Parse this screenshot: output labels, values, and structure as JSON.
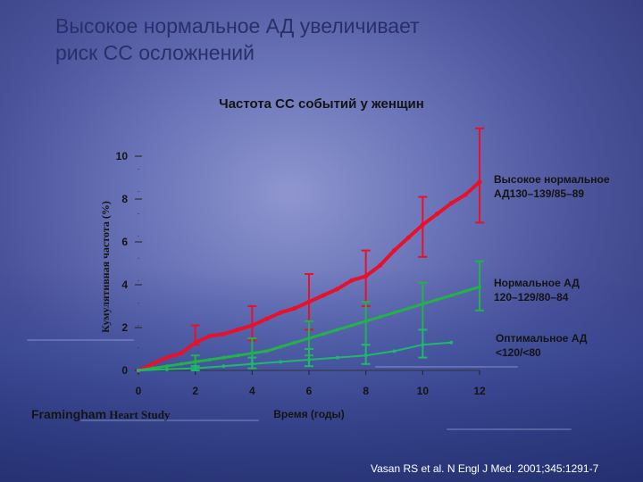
{
  "slide": {
    "title_line1": "Высокое нормальное АД увеличивает",
    "title_line2": "риск СС осложнений",
    "study_part1": "Framingham",
    "study_part2": " Heart Study",
    "citation": "Vasan RS et al. N Engl J Med. 2001;345:1291-7"
  },
  "colors": {
    "high_normal": "#e8102a",
    "normal": "#22b24a",
    "optimal": "#1fb86b"
  },
  "chart_data": {
    "type": "line",
    "title": "Частота СС событий у женщин",
    "xlabel": "Время (годы)",
    "ylabel": "Кумулятивная частота (%)",
    "xlim": [
      0,
      12
    ],
    "ylim": [
      0,
      10
    ],
    "xticks": [
      0,
      2,
      4,
      6,
      8,
      10,
      12
    ],
    "yticks": [
      0,
      2,
      4,
      6,
      8,
      10
    ],
    "series": [
      {
        "name": "Высокое нормальное АД130–139/85–89",
        "name_line1": "Высокое нормальное",
        "name_line2": "АД130–139/85–89",
        "points": [
          [
            0,
            0
          ],
          [
            0.5,
            0.3
          ],
          [
            1,
            0.6
          ],
          [
            1.5,
            0.8
          ],
          [
            2,
            1.3
          ],
          [
            2.5,
            1.6
          ],
          [
            3,
            1.7
          ],
          [
            3.5,
            1.9
          ],
          [
            4,
            2.1
          ],
          [
            4.5,
            2.4
          ],
          [
            5,
            2.7
          ],
          [
            5.5,
            2.9
          ],
          [
            6,
            3.2
          ],
          [
            6.5,
            3.5
          ],
          [
            7,
            3.8
          ],
          [
            7.5,
            4.2
          ],
          [
            8,
            4.4
          ],
          [
            8.5,
            4.9
          ],
          [
            9,
            5.6
          ],
          [
            9.5,
            6.2
          ],
          [
            10,
            6.8
          ],
          [
            10.5,
            7.3
          ],
          [
            11,
            7.8
          ],
          [
            11.5,
            8.2
          ],
          [
            12,
            8.8
          ]
        ],
        "error_bars": [
          [
            2,
            1.2,
            2.1
          ],
          [
            4,
            1.4,
            3.0
          ],
          [
            6,
            1.9,
            4.5
          ],
          [
            8,
            3.0,
            5.6
          ],
          [
            10,
            5.3,
            8.1
          ],
          [
            12,
            6.9,
            11.3
          ]
        ]
      },
      {
        "name": "Нормальное АД 120–129/80–84",
        "name_line1": "Нормальное АД",
        "name_line2": "120–129/80–84",
        "points": [
          [
            0,
            0
          ],
          [
            0.5,
            0.1
          ],
          [
            1,
            0.2
          ],
          [
            1.5,
            0.3
          ],
          [
            2,
            0.4
          ],
          [
            2.5,
            0.5
          ],
          [
            3,
            0.6
          ],
          [
            3.5,
            0.7
          ],
          [
            4,
            0.8
          ],
          [
            4.5,
            0.9
          ],
          [
            5,
            1.1
          ],
          [
            5.5,
            1.3
          ],
          [
            6,
            1.5
          ],
          [
            6.5,
            1.7
          ],
          [
            7,
            1.9
          ],
          [
            7.5,
            2.1
          ],
          [
            8,
            2.3
          ],
          [
            8.5,
            2.5
          ],
          [
            9,
            2.7
          ],
          [
            9.5,
            2.9
          ],
          [
            10,
            3.1
          ],
          [
            10.5,
            3.3
          ],
          [
            11,
            3.5
          ],
          [
            11.5,
            3.7
          ],
          [
            12,
            3.9
          ]
        ],
        "error_bars": [
          [
            2,
            0.1,
            0.7
          ],
          [
            4,
            0.3,
            1.5
          ],
          [
            6,
            0.7,
            2.3
          ],
          [
            8,
            1.2,
            3.2
          ],
          [
            10,
            1.9,
            4.1
          ],
          [
            12,
            2.8,
            5.1
          ]
        ]
      },
      {
        "name": "Оптимальное АД <120/<80",
        "name_line1": "Оптимальное АД",
        "name_line2": "<120/<80",
        "points": [
          [
            0,
            0
          ],
          [
            1,
            0.05
          ],
          [
            2,
            0.1
          ],
          [
            3,
            0.2
          ],
          [
            4,
            0.3
          ],
          [
            5,
            0.4
          ],
          [
            6,
            0.5
          ],
          [
            7,
            0.6
          ],
          [
            8,
            0.7
          ],
          [
            9,
            0.9
          ],
          [
            10,
            1.2
          ],
          [
            11,
            1.3
          ]
        ],
        "error_bars": [
          [
            2,
            0.0,
            0.2
          ],
          [
            4,
            0.1,
            0.6
          ],
          [
            6,
            0.2,
            1.0
          ],
          [
            8,
            0.3,
            1.2
          ],
          [
            10,
            0.6,
            1.9
          ]
        ]
      }
    ]
  }
}
